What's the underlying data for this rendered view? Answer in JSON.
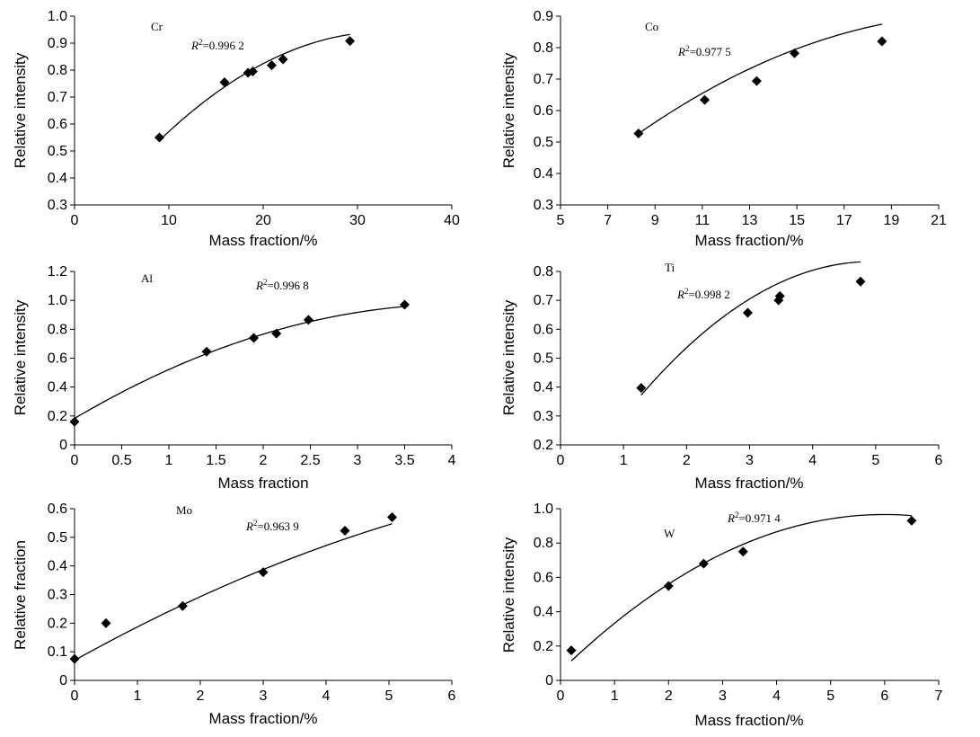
{
  "chart_data": [
    {
      "type": "scatter",
      "element": "Cr",
      "r2": "=0.996 2",
      "xlabel": "Mass fraction/%",
      "ylabel": "Relative intensity",
      "xlim": [
        0,
        40
      ],
      "ylim": [
        0.3,
        1.0
      ],
      "xticks": [
        0,
        10,
        20,
        30,
        40
      ],
      "yticks": [
        0.3,
        0.4,
        0.5,
        0.6,
        0.7,
        0.8,
        0.9,
        1.0
      ],
      "xtick_labels": [
        "0",
        "10",
        "20",
        "30",
        "40"
      ],
      "ytick_labels": [
        "0.3",
        "0.4",
        "0.5",
        "0.6",
        "0.7",
        "0.8",
        "0.9",
        "1.0"
      ],
      "points": [
        [
          9.0,
          0.55
        ],
        [
          15.9,
          0.755
        ],
        [
          18.4,
          0.79
        ],
        [
          18.9,
          0.795
        ],
        [
          20.9,
          0.818
        ],
        [
          22.1,
          0.84
        ],
        [
          29.2,
          0.908
        ]
      ],
      "fit": [
        -0.0007,
        0.0462,
        0.18
      ],
      "fit_range": [
        9.0,
        29.2
      ]
    },
    {
      "type": "scatter",
      "element": "Co",
      "r2": "=0.977 5",
      "xlabel": "Mass fraction/%",
      "ylabel": "Relative intensity",
      "xlim": [
        5,
        21
      ],
      "ylim": [
        0.3,
        0.9
      ],
      "xticks": [
        5,
        7,
        9,
        11,
        13,
        15,
        17,
        19,
        21
      ],
      "yticks": [
        0.3,
        0.4,
        0.5,
        0.6,
        0.7,
        0.8,
        0.9
      ],
      "xtick_labels": [
        "5",
        "7",
        "9",
        "11",
        "13",
        "15",
        "17",
        "19",
        "21"
      ],
      "ytick_labels": [
        "0.3",
        "0.4",
        "0.5",
        "0.6",
        "0.7",
        "0.8",
        "0.9"
      ],
      "points": [
        [
          8.3,
          0.527
        ],
        [
          11.1,
          0.634
        ],
        [
          13.3,
          0.694
        ],
        [
          14.9,
          0.782
        ],
        [
          18.6,
          0.82
        ]
      ],
      "fit": [
        -0.0018,
        0.0822,
        -0.0317
      ],
      "fit_range": [
        8.3,
        18.6
      ]
    },
    {
      "type": "scatter",
      "element": "Al",
      "r2": "=0.996 8",
      "xlabel": "Mass fraction",
      "ylabel": "Relative intensity",
      "xlim": [
        0,
        4
      ],
      "ylim": [
        0,
        1.2
      ],
      "xticks": [
        0,
        0.5,
        1,
        1.5,
        2,
        2.5,
        3,
        3.5,
        4
      ],
      "yticks": [
        0,
        0.2,
        0.4,
        0.6,
        0.8,
        1.0,
        1.2
      ],
      "xtick_labels": [
        "0",
        "0.5",
        "1",
        "1.5",
        "2",
        "2.5",
        "3",
        "3.5",
        "4"
      ],
      "ytick_labels": [
        "0",
        "0.2",
        "0.4",
        "0.6",
        "0.8",
        "1.0",
        "1.2"
      ],
      "points": [
        [
          0.0,
          0.16
        ],
        [
          1.4,
          0.645
        ],
        [
          1.9,
          0.74
        ],
        [
          2.14,
          0.77
        ],
        [
          2.48,
          0.865
        ],
        [
          3.5,
          0.97
        ]
      ],
      "fit": [
        -0.0469,
        0.3853,
        0.1831
      ],
      "fit_range": [
        0.0,
        3.5
      ]
    },
    {
      "type": "scatter",
      "element": "Ti",
      "r2": "=0.998 2",
      "xlabel": "Mass fraction/%",
      "ylabel": "Relative intensity",
      "xlim": [
        0,
        6
      ],
      "ylim": [
        0.2,
        0.8
      ],
      "xticks": [
        0,
        1,
        2,
        3,
        4,
        5,
        6
      ],
      "yticks": [
        0.2,
        0.3,
        0.4,
        0.5,
        0.6,
        0.7,
        0.8
      ],
      "xtick_labels": [
        "0",
        "1",
        "2",
        "3",
        "4",
        "5",
        "6"
      ],
      "ytick_labels": [
        "0.2",
        "0.3",
        "0.4",
        "0.5",
        "0.6",
        "0.7",
        "0.8"
      ],
      "points": [
        [
          1.28,
          0.397
        ],
        [
          2.97,
          0.657
        ],
        [
          3.46,
          0.7
        ],
        [
          3.48,
          0.715
        ],
        [
          4.76,
          0.765
        ]
      ],
      "fit": [
        -0.0346,
        0.3414,
        -0.0081
      ],
      "fit_range": [
        1.28,
        4.76
      ]
    },
    {
      "type": "scatter",
      "element": "Mo",
      "r2": "=0.963 9",
      "xlabel": "Mass fraction/%",
      "ylabel": "Relative fraction",
      "xlim": [
        0,
        6
      ],
      "ylim": [
        0,
        0.6
      ],
      "xticks": [
        0,
        1,
        2,
        3,
        4,
        5,
        6
      ],
      "yticks": [
        0,
        0.1,
        0.2,
        0.3,
        0.4,
        0.5,
        0.6
      ],
      "xtick_labels": [
        "0",
        "1",
        "2",
        "3",
        "4",
        "5",
        "6"
      ],
      "ytick_labels": [
        "0",
        "0.1",
        "0.2",
        "0.3",
        "0.4",
        "0.5",
        "0.6"
      ],
      "points": [
        [
          0.0,
          0.075
        ],
        [
          0.5,
          0.2
        ],
        [
          1.72,
          0.26
        ],
        [
          3.0,
          0.378
        ],
        [
          4.3,
          0.523
        ],
        [
          5.05,
          0.57
        ]
      ],
      "fit": [
        -0.0055,
        0.1223,
        0.07
      ],
      "fit_range": [
        0.0,
        5.05
      ]
    },
    {
      "type": "scatter",
      "element": "W",
      "r2": "=0.971 4",
      "xlabel": "Mass fraction/%",
      "ylabel": "Relative intensity",
      "xlim": [
        0,
        7
      ],
      "ylim": [
        0,
        1.0
      ],
      "xticks": [
        0,
        1,
        2,
        3,
        4,
        5,
        6,
        7
      ],
      "yticks": [
        0,
        0.2,
        0.4,
        0.6,
        0.8,
        1.0
      ],
      "xtick_labels": [
        "0",
        "1",
        "2",
        "3",
        "4",
        "5",
        "6",
        "7"
      ],
      "ytick_labels": [
        "0",
        "0.2",
        "0.4",
        "0.6",
        "0.8",
        "1.0"
      ],
      "points": [
        [
          0.2,
          0.175
        ],
        [
          2.0,
          0.55
        ],
        [
          2.65,
          0.68
        ],
        [
          3.38,
          0.75
        ],
        [
          6.5,
          0.93
        ]
      ],
      "fit": [
        -0.0254,
        0.3045,
        0.0535
      ],
      "fit_range": [
        0.2,
        6.5
      ]
    }
  ]
}
